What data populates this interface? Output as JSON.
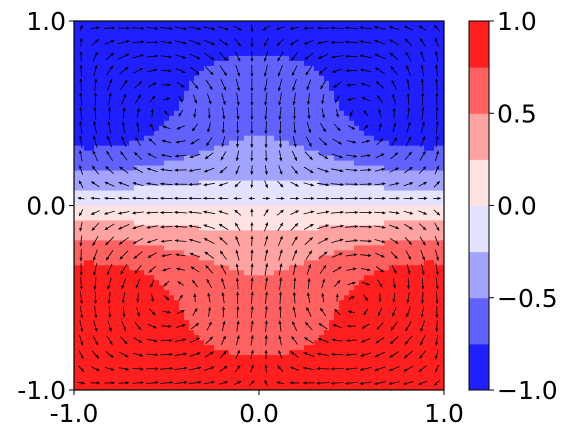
{
  "chart_data": {
    "type": "heatmap",
    "subtype": "filled contour with quiver (vector field) overlay",
    "title": "",
    "xlabel": "",
    "ylabel": "",
    "xlim": [
      -1.0,
      1.0
    ],
    "ylim": [
      -1.0,
      1.0
    ],
    "x_ticks": [
      "-1.0",
      "0.0",
      "1.0"
    ],
    "y_ticks": [
      "-1.0",
      "0.0",
      "1.0"
    ],
    "grid": false,
    "colorbar": {
      "placement": "right",
      "colormap": "bwr",
      "range": [
        -1.0,
        1.0
      ],
      "ticks": [
        "−1.0",
        "−0.5",
        "0.0",
        "0.5",
        "1.0"
      ],
      "levels": [
        -1.0,
        -0.75,
        -0.5,
        -0.25,
        0.0,
        0.25,
        0.5,
        0.75,
        1.0
      ],
      "level_colors": [
        "#1f1fff",
        "#6161ff",
        "#a2a2ff",
        "#e3e3ff",
        "#ffe3e3",
        "#ffa2a2",
        "#ff6161",
        "#ff1f1f"
      ]
    },
    "field_description": "temperature-like field: -1 near top edge, +1 near bottom edge, with circulation cells",
    "vector_field": {
      "description": "four counter-rotating vortex cells, one per quadrant",
      "vortex_centers": [
        [
          -0.5,
          0.5
        ],
        [
          0.5,
          0.5
        ],
        [
          -0.5,
          -0.5
        ],
        [
          0.5,
          -0.5
        ]
      ]
    }
  }
}
